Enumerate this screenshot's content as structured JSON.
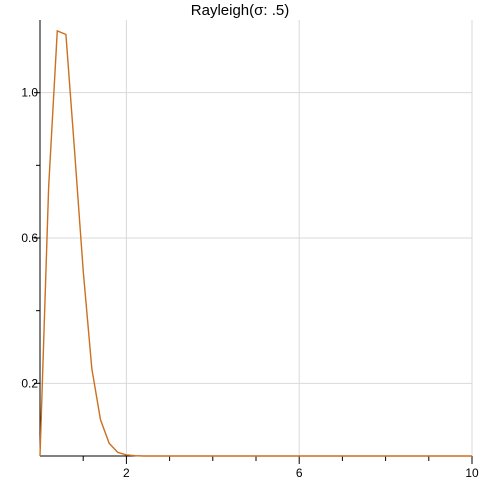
{
  "chart_data": {
    "type": "line",
    "title": "Rayleigh(σ: .5)",
    "xlabel": "",
    "ylabel": "",
    "xlim": [
      0,
      10
    ],
    "ylim": [
      0,
      1.2
    ],
    "grid": true,
    "x_ticks": [
      2,
      6,
      10
    ],
    "x_tick_labels": [
      "2",
      "6",
      "10"
    ],
    "x_minor_ticks": [
      1,
      3,
      4,
      5,
      7,
      8,
      9
    ],
    "y_ticks": [
      0.2,
      0.6,
      1.0
    ],
    "y_tick_labels": [
      "0.2",
      "0.6",
      "1.0"
    ],
    "y_minor_ticks": [
      0.4,
      0.8
    ],
    "series": [
      {
        "color": "#cc6f1e",
        "x": [
          0.0,
          0.2,
          0.4,
          0.6,
          0.8,
          1.0,
          1.2,
          1.4,
          1.6,
          1.8,
          2.0,
          2.2,
          2.4,
          2.6,
          2.8,
          3.0,
          4.0,
          5.0,
          6.0,
          7.0,
          8.0,
          9.0,
          10.0
        ],
        "y": [
          0.0,
          0.74,
          1.17,
          1.16,
          0.84,
          0.51,
          0.24,
          0.1,
          0.035,
          0.01,
          0.003,
          0.001,
          0.0,
          0.0,
          0.0,
          0.0,
          0.0,
          0.0,
          0.0,
          0.0,
          0.0,
          0.0,
          0.0
        ]
      }
    ]
  }
}
